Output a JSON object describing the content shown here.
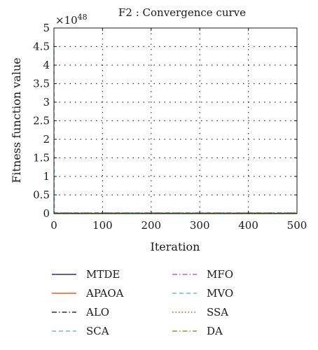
{
  "chart_data": {
    "type": "line",
    "title": "F2 : Convergence curve",
    "xlabel": "Iteration",
    "ylabel": "Fitness function value",
    "xlim": [
      0,
      500
    ],
    "ylim": [
      0,
      5
    ],
    "y_multiplier": "×10",
    "y_exponent": "48",
    "x_ticks": [
      "0",
      "100",
      "200",
      "300",
      "400",
      "500"
    ],
    "y_ticks": [
      "0",
      "0.5",
      "1",
      "1.5",
      "2",
      "2.5",
      "3",
      "3.5",
      "4",
      "4.5",
      "5"
    ],
    "grid": true,
    "legend_placement": "below",
    "series": [
      {
        "name": "MTDE",
        "color": "#2b2b8f",
        "dash": "solid",
        "x": [
          0,
          1,
          2,
          500
        ],
        "y": [
          0.02,
          0.0,
          0.0,
          0.0
        ]
      },
      {
        "name": "APAOA",
        "color": "#d9622b",
        "dash": "solid",
        "x": [
          0,
          1,
          2,
          500
        ],
        "y": [
          0.03,
          0.0,
          0.0,
          0.0
        ]
      },
      {
        "name": "ALO",
        "color": "#333333",
        "dash": "dashdot",
        "x": [
          0,
          1,
          2,
          500
        ],
        "y": [
          0.02,
          0.01,
          0.01,
          0.01
        ]
      },
      {
        "name": "SCA",
        "color": "#6ab8e0",
        "dash": "dashed",
        "x": [
          0,
          1,
          2,
          500
        ],
        "y": [
          0.05,
          0.01,
          0.01,
          0.01
        ]
      },
      {
        "name": "MFO",
        "color": "#c060b8",
        "dash": "dashdot",
        "x": [
          0,
          1,
          2,
          500
        ],
        "y": [
          0.04,
          0.01,
          0.0,
          0.0
        ]
      },
      {
        "name": "MVO",
        "color": "#6ab8e0",
        "dash": "dashed",
        "x": [
          0,
          1,
          2,
          500
        ],
        "y": [
          4.6,
          0.05,
          0.02,
          0.02
        ]
      },
      {
        "name": "SSA",
        "color": "#b5542f",
        "dash": "dotted",
        "x": [
          0,
          1,
          2,
          500
        ],
        "y": [
          0.04,
          0.01,
          0.01,
          0.01
        ]
      },
      {
        "name": "DA",
        "color": "#6fa832",
        "dash": "dashdot",
        "x": [
          0,
          1,
          2,
          500
        ],
        "y": [
          0.05,
          0.03,
          0.02,
          0.02
        ]
      }
    ]
  }
}
